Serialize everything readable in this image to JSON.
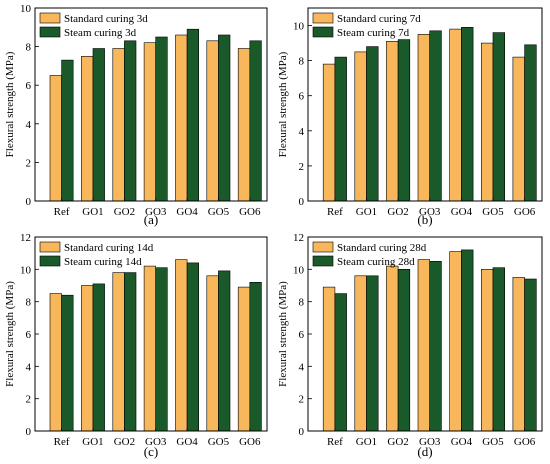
{
  "colors": {
    "standard": "#f8b75b",
    "steam": "#1a5a2a",
    "edge": "#000000"
  },
  "chart_data": [
    {
      "type": "bar",
      "panel_label": "(a)",
      "categories": [
        "Ref",
        "GO1",
        "GO2",
        "GO3",
        "GO4",
        "GO5",
        "GO6"
      ],
      "series": [
        {
          "name": "Standard curing 3d",
          "values": [
            6.5,
            7.5,
            7.9,
            8.2,
            8.6,
            8.3,
            7.9
          ]
        },
        {
          "name": "Steam curing 3d",
          "values": [
            7.3,
            7.9,
            8.3,
            8.5,
            8.9,
            8.6,
            8.3
          ]
        }
      ],
      "ylabel": "Flexural strength (MPa)",
      "ylim": [
        0,
        10
      ],
      "yticks": [
        0,
        2,
        4,
        6,
        8,
        10
      ],
      "legend": "top-left"
    },
    {
      "type": "bar",
      "panel_label": "(b)",
      "categories": [
        "Ref",
        "GO1",
        "GO2",
        "GO3",
        "GO4",
        "GO5",
        "GO6"
      ],
      "series": [
        {
          "name": "Standard curing 7d",
          "values": [
            7.8,
            8.5,
            9.1,
            9.5,
            9.8,
            9.0,
            8.2
          ]
        },
        {
          "name": "Steam curing 7d",
          "values": [
            8.2,
            8.8,
            9.2,
            9.7,
            9.9,
            9.6,
            8.9
          ]
        }
      ],
      "ylabel": "Flexural strength (MPa)",
      "ylim": [
        0,
        11
      ],
      "yticks": [
        0,
        2,
        4,
        6,
        8,
        10
      ],
      "legend": "top-left"
    },
    {
      "type": "bar",
      "panel_label": "(c)",
      "categories": [
        "Ref",
        "GO1",
        "GO2",
        "GO3",
        "GO4",
        "GO5",
        "GO6"
      ],
      "series": [
        {
          "name": "Standard curing 14d",
          "values": [
            8.5,
            9.0,
            9.8,
            10.2,
            10.6,
            9.6,
            8.9
          ]
        },
        {
          "name": "Steam curing 14d",
          "values": [
            8.4,
            9.1,
            9.8,
            10.1,
            10.4,
            9.9,
            9.2
          ]
        }
      ],
      "ylabel": "Flexural strength (MPa)",
      "ylim": [
        0,
        12
      ],
      "yticks": [
        0,
        2,
        4,
        6,
        8,
        10,
        12
      ],
      "legend": "top-left"
    },
    {
      "type": "bar",
      "panel_label": "(d)",
      "categories": [
        "Ref",
        "GO1",
        "GO2",
        "GO3",
        "GO4",
        "GO5",
        "GO6"
      ],
      "series": [
        {
          "name": "Standard curing 28d",
          "values": [
            8.9,
            9.6,
            10.2,
            10.6,
            11.1,
            10.0,
            9.5
          ]
        },
        {
          "name": "Steam curing 28d",
          "values": [
            8.5,
            9.6,
            10.0,
            10.5,
            11.2,
            10.1,
            9.4
          ]
        }
      ],
      "ylabel": "Flexural strength (MPa)",
      "ylim": [
        0,
        12
      ],
      "yticks": [
        0,
        2,
        4,
        6,
        8,
        10,
        12
      ],
      "legend": "top-left"
    }
  ]
}
